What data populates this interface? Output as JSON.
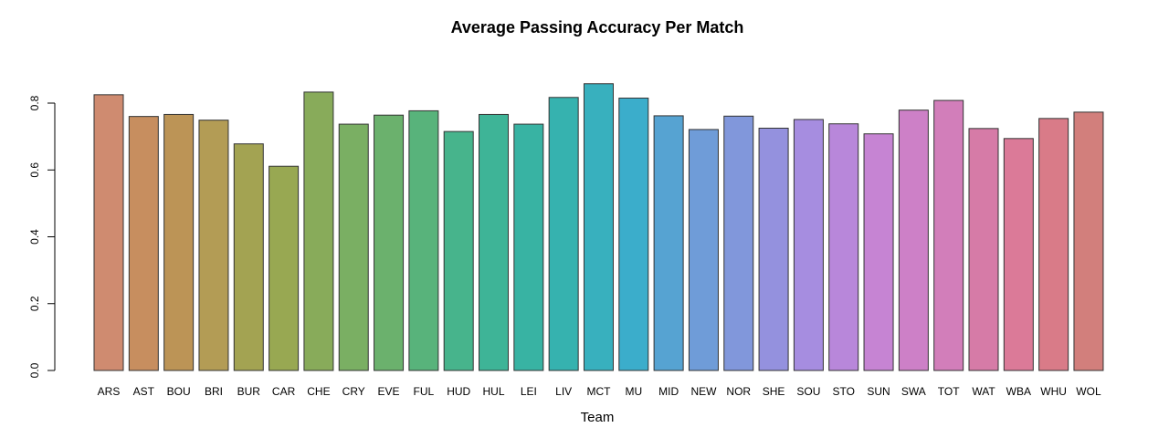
{
  "chart_data": {
    "type": "bar",
    "title": "Average Passing Accuracy Per Match",
    "xlabel": "Team",
    "ylabel": "",
    "ylim": [
      0,
      0.88
    ],
    "yticks": [
      0.0,
      0.2,
      0.4,
      0.6,
      0.8
    ],
    "ytick_labels": [
      "0.0",
      "0.2",
      "0.4",
      "0.6",
      "0.8"
    ],
    "grid": false,
    "legend": "none",
    "categories": [
      "ARS",
      "AST",
      "BOU",
      "BRI",
      "BUR",
      "CAR",
      "CHE",
      "CRY",
      "EVE",
      "FUL",
      "HUD",
      "HUL",
      "LEI",
      "LIV",
      "MCT",
      "MU",
      "MID",
      "NEW",
      "NOR",
      "SHE",
      "SOU",
      "STO",
      "SUN",
      "SWA",
      "TOT",
      "WAT",
      "WBA",
      "WHU",
      "WOL"
    ],
    "values": [
      0.825,
      0.76,
      0.766,
      0.749,
      0.678,
      0.611,
      0.833,
      0.737,
      0.764,
      0.777,
      0.715,
      0.766,
      0.737,
      0.817,
      0.858,
      0.815,
      0.762,
      0.721,
      0.761,
      0.725,
      0.751,
      0.738,
      0.708,
      0.779,
      0.808,
      0.724,
      0.694,
      0.754,
      0.773
    ],
    "colors": [
      "#CF8B70",
      "#C78E5F",
      "#BC9456",
      "#B39C55",
      "#A3A352",
      "#98A852",
      "#88AB5A",
      "#7AAF63",
      "#6BB16D",
      "#58B37B",
      "#47B48C",
      "#3EB497",
      "#38B3A3",
      "#36B2AF",
      "#38B0BE",
      "#3BADCB",
      "#56A3D2",
      "#6F9CD8",
      "#8197DB",
      "#9491DE",
      "#A68DE0",
      "#B887DA",
      "#C684D3",
      "#CD80C7",
      "#D27EBA",
      "#D67BA7",
      "#DB7A98",
      "#D97B88",
      "#D27F7C"
    ]
  }
}
